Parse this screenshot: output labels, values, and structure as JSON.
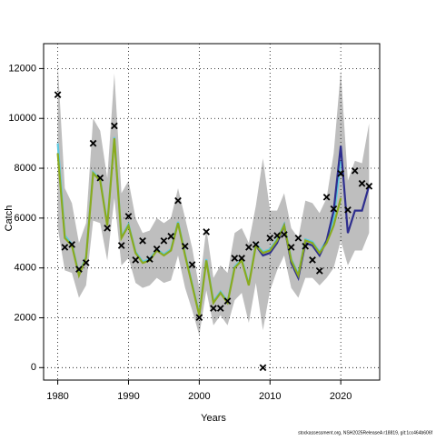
{
  "chart_data": {
    "type": "line",
    "xlabel": "Years",
    "ylabel": "Catch",
    "footer": "stockassessment.org, NSH2025ReleaseA r18819, git:1cc464b606f",
    "x": [
      1980,
      1981,
      1982,
      1983,
      1984,
      1985,
      1986,
      1987,
      1988,
      1989,
      1990,
      1991,
      1992,
      1993,
      1994,
      1995,
      1996,
      1997,
      1998,
      1999,
      2000,
      2001,
      2002,
      2003,
      2004,
      2005,
      2006,
      2007,
      2008,
      2009,
      2010,
      2011,
      2012,
      2013,
      2014,
      2015,
      2016,
      2017,
      2018,
      2019,
      2020,
      2021,
      2022,
      2023,
      2024
    ],
    "band": {
      "color": "#bebebe",
      "upper": [
        12200,
        7200,
        6600,
        5000,
        5800,
        10000,
        9500,
        7600,
        11800,
        7000,
        7500,
        6000,
        5400,
        5500,
        6000,
        5800,
        6000,
        7200,
        6000,
        4800,
        3200,
        5600,
        3600,
        4100,
        3800,
        5400,
        5600,
        5000,
        6500,
        8400,
        6300,
        6300,
        7000,
        5600,
        5200,
        6700,
        6600,
        6200,
        6800,
        8600,
        11900,
        7500,
        8300,
        8200,
        9800
      ],
      "lower": [
        5600,
        3900,
        3800,
        2800,
        3300,
        5900,
        5800,
        4300,
        6800,
        4100,
        4400,
        3400,
        3200,
        3300,
        3600,
        3400,
        3500,
        4500,
        3200,
        2300,
        1300,
        3100,
        1700,
        2100,
        1700,
        2700,
        3000,
        1800,
        3400,
        1500,
        3100,
        3900,
        4500,
        3200,
        2800,
        3600,
        3600,
        3300,
        3600,
        4000,
        5100,
        4100,
        4700,
        4700,
        5400
      ]
    },
    "series": [
      {
        "color": "#5bc8e0",
        "values": [
          9000,
          5300,
          4950,
          3750,
          4450,
          7850,
          7550,
          5750,
          9250,
          5250,
          5750,
          4650,
          4250,
          4350,
          4750,
          4550,
          4750,
          5850,
          4550,
          3350,
          2150,
          4350,
          2650,
          3050,
          2650,
          4050,
          4350,
          3350,
          4950,
          4650,
          4750,
          5150,
          5750,
          4350,
          3750,
          5150,
          5050,
          4650,
          5100,
          6000,
          8300,
          null,
          null,
          null,
          null
        ]
      },
      {
        "color": "#2e2e8e",
        "values": [
          null,
          null,
          null,
          null,
          null,
          null,
          null,
          null,
          null,
          null,
          null,
          null,
          null,
          null,
          null,
          null,
          null,
          null,
          null,
          null,
          null,
          null,
          null,
          null,
          null,
          null,
          null,
          null,
          4900,
          4500,
          4600,
          5000,
          5700,
          4200,
          3600,
          5000,
          4900,
          4500,
          5100,
          6300,
          8900,
          5400,
          6300,
          6300,
          7300
        ]
      },
      {
        "color": "#8aaa1e",
        "values": [
          8600,
          5200,
          4900,
          3700,
          4400,
          7800,
          7500,
          5700,
          9200,
          5200,
          5700,
          4600,
          4200,
          4300,
          4700,
          4500,
          4700,
          5800,
          4500,
          3300,
          2100,
          4300,
          2600,
          3000,
          2600,
          4000,
          4300,
          3300,
          4900,
          4600,
          4700,
          5100,
          5700,
          4300,
          3700,
          5100,
          5000,
          4600,
          5000,
          5700,
          6800,
          null,
          null,
          null,
          null
        ]
      }
    ],
    "observed": {
      "color": "#000000",
      "values": [
        10950,
        4830,
        4940,
        3950,
        4210,
        9000,
        7610,
        5600,
        9700,
        4900,
        6070,
        4320,
        5090,
        4350,
        4760,
        5090,
        5270,
        6700,
        4870,
        4130,
        2010,
        5450,
        2380,
        2380,
        2670,
        4390,
        4390,
        4830,
        4940,
        0,
        5200,
        5300,
        5340,
        4830,
        5200,
        4870,
        4320,
        3880,
        6840,
        6370,
        7790,
        6330,
        7900,
        7390,
        7280
      ]
    },
    "xlim": [
      1978,
      2025.5
    ],
    "ylim": [
      -500,
      13000
    ],
    "xticks": [
      1980,
      1990,
      2000,
      2010,
      2020
    ],
    "yticks": [
      0,
      2000,
      4000,
      6000,
      8000,
      10000,
      12000
    ],
    "grid": true
  }
}
